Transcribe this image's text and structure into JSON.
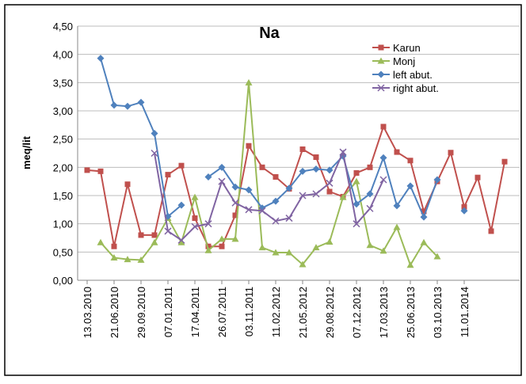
{
  "chart_data": {
    "type": "line",
    "title": "Na",
    "y_label": "meq/lit",
    "categories": [
      "13.03.2010",
      null,
      "21.06.2010",
      null,
      "29.09.2010",
      null,
      "07.01.2011",
      null,
      "17.04.2011",
      null,
      "26.07.2011",
      null,
      "03.11.2011",
      null,
      "11.02.2012",
      null,
      "21.05.2012",
      null,
      "29.08.2012",
      null,
      "07.12.2012",
      null,
      "17.03.2013",
      null,
      "25.06.2013",
      null,
      "03.10.2013",
      null,
      "11.01.2014",
      null,
      null,
      null
    ],
    "series": [
      {
        "name": "Karun",
        "color": "#c0504d",
        "marker": "square",
        "values": [
          1.95,
          1.93,
          0.6,
          1.7,
          0.8,
          0.8,
          1.87,
          2.03,
          1.1,
          0.6,
          0.6,
          1.15,
          2.38,
          2.0,
          1.83,
          1.62,
          2.32,
          2.18,
          1.57,
          1.48,
          1.9,
          2.0,
          2.72,
          2.27,
          2.12,
          1.22,
          1.75,
          2.26,
          1.3,
          1.82,
          0.87,
          2.1
        ]
      },
      {
        "name": "Monj",
        "color": "#9bbb59",
        "marker": "triangle",
        "values": [
          null,
          0.67,
          0.4,
          0.37,
          0.36,
          0.67,
          1.1,
          0.67,
          1.47,
          0.53,
          0.73,
          0.73,
          3.5,
          0.58,
          0.49,
          0.49,
          0.28,
          0.58,
          0.68,
          1.47,
          1.75,
          0.62,
          0.52,
          0.94,
          0.27,
          0.67,
          0.42,
          null,
          null,
          null,
          null,
          null
        ]
      },
      {
        "name": "left abut.",
        "color": "#4f81bd",
        "marker": "diamond",
        "values": [
          null,
          3.93,
          3.1,
          3.08,
          3.15,
          2.6,
          1.13,
          1.33,
          null,
          1.83,
          2.0,
          1.65,
          1.6,
          1.28,
          1.4,
          1.63,
          1.93,
          1.97,
          1.95,
          2.2,
          1.35,
          1.53,
          2.17,
          1.32,
          1.67,
          1.12,
          1.78,
          null,
          1.23,
          null,
          null,
          null
        ]
      },
      {
        "name": "right abut.",
        "color": "#8064a2",
        "marker": "cross",
        "values": [
          null,
          null,
          null,
          null,
          null,
          2.25,
          0.87,
          0.71,
          0.95,
          1.0,
          1.75,
          1.37,
          1.25,
          1.23,
          1.05,
          1.1,
          1.5,
          1.53,
          1.72,
          2.27,
          1.0,
          1.27,
          1.78,
          null,
          null,
          null,
          null,
          null,
          null,
          null,
          null,
          null
        ]
      }
    ],
    "ylim": [
      0,
      4.5
    ],
    "yticks": [
      {
        "value": 0,
        "label": "0,00"
      },
      {
        "value": 0.5,
        "label": "0,50"
      },
      {
        "value": 1,
        "label": "1,00"
      },
      {
        "value": 1.5,
        "label": "1,50"
      },
      {
        "value": 2,
        "label": "2,00"
      },
      {
        "value": 2.5,
        "label": "2,50"
      },
      {
        "value": 3,
        "label": "3,00"
      },
      {
        "value": 3.5,
        "label": "3,50"
      },
      {
        "value": 4,
        "label": "4,00"
      },
      {
        "value": 4.5,
        "label": "4,50"
      }
    ],
    "grid": true,
    "legend": "upper right"
  }
}
